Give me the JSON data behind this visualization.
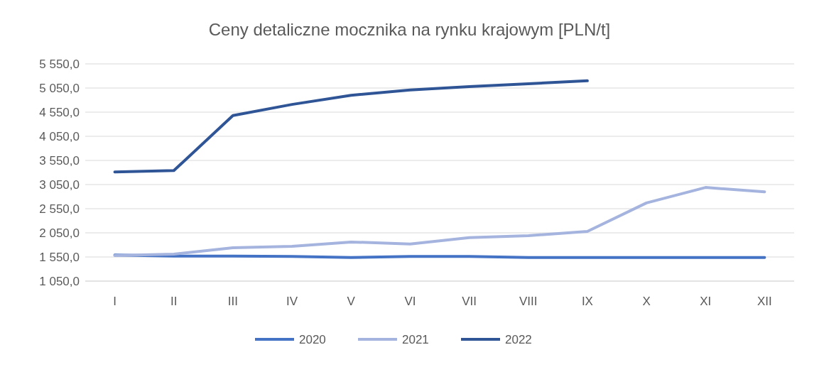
{
  "chart_data": {
    "type": "line",
    "title": "Ceny detaliczne mocznika na rynku krajowym [PLN/t]",
    "categories": [
      "I",
      "II",
      "III",
      "IV",
      "V",
      "VI",
      "VII",
      "VIII",
      "IX",
      "X",
      "XI",
      "XII"
    ],
    "series": [
      {
        "name": "2020",
        "color": "#4472c4",
        "values": [
          1590,
          1570,
          1570,
          1560,
          1540,
          1560,
          1560,
          1540,
          1540,
          1540,
          1540,
          1540
        ]
      },
      {
        "name": "2021",
        "color": "#a5b4de",
        "values": [
          1580,
          1610,
          1740,
          1770,
          1860,
          1820,
          1950,
          1990,
          2080,
          2670,
          2990,
          2900
        ]
      },
      {
        "name": "2022",
        "color": "#2f5597",
        "values": [
          3310,
          3340,
          4480,
          4710,
          4900,
          5010,
          5080,
          5140,
          5200,
          null,
          null,
          null
        ]
      }
    ],
    "ylim": [
      1050,
      5550
    ],
    "yticks": [
      {
        "value": 1050,
        "label": "1 050,0"
      },
      {
        "value": 1550,
        "label": "1 550,0"
      },
      {
        "value": 2050,
        "label": "2 050,0"
      },
      {
        "value": 2550,
        "label": "2 550,0"
      },
      {
        "value": 3050,
        "label": "3 050,0"
      },
      {
        "value": 3550,
        "label": "3 550,0"
      },
      {
        "value": 4050,
        "label": "4 050,0"
      },
      {
        "value": 4550,
        "label": "4 550,0"
      },
      {
        "value": 5050,
        "label": "5 050,0"
      },
      {
        "value": 5550,
        "label": "5 550,0"
      }
    ],
    "grid": "y",
    "legend": "bottom",
    "marker": "none",
    "line_style": "solid"
  }
}
